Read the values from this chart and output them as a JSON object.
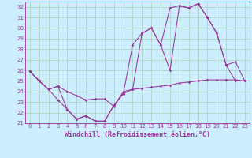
{
  "xlabel": "Windchill (Refroidissement éolien,°C)",
  "background_color": "#cceeff",
  "grid_color": "#aaccbb",
  "line_color": "#993399",
  "xlim": [
    -0.5,
    23.5
  ],
  "ylim": [
    21,
    32.5
  ],
  "xticks": [
    0,
    1,
    2,
    3,
    4,
    5,
    6,
    7,
    8,
    9,
    10,
    11,
    12,
    13,
    14,
    15,
    16,
    17,
    18,
    19,
    20,
    21,
    22,
    23
  ],
  "yticks": [
    21,
    22,
    23,
    24,
    25,
    26,
    27,
    28,
    29,
    30,
    31,
    32
  ],
  "series1_x": [
    0,
    1,
    2,
    3,
    4,
    5,
    6,
    7,
    8,
    9,
    10,
    11,
    12,
    13,
    14,
    15,
    16,
    17,
    18,
    19,
    20,
    21,
    22,
    23
  ],
  "series1_y": [
    25.9,
    25.0,
    24.2,
    24.5,
    22.3,
    21.4,
    21.7,
    21.2,
    21.2,
    22.7,
    23.8,
    24.2,
    29.5,
    30.0,
    28.4,
    26.0,
    32.1,
    31.9,
    32.3,
    31.0,
    29.5,
    26.5,
    25.0,
    25.0
  ],
  "series2_x": [
    0,
    1,
    2,
    3,
    4,
    5,
    6,
    7,
    8,
    9,
    10,
    11,
    12,
    13,
    14,
    15,
    16,
    17,
    18,
    19,
    20,
    21,
    22,
    23
  ],
  "series2_y": [
    25.9,
    25.0,
    24.2,
    24.5,
    24.0,
    23.6,
    23.2,
    23.3,
    23.3,
    22.6,
    24.0,
    24.2,
    24.3,
    24.4,
    24.5,
    24.6,
    24.8,
    24.9,
    25.0,
    25.1,
    25.1,
    25.1,
    25.1,
    25.0
  ],
  "series3_x": [
    0,
    1,
    2,
    3,
    4,
    5,
    6,
    7,
    8,
    9,
    10,
    11,
    12,
    13,
    14,
    15,
    16,
    17,
    18,
    19,
    20,
    21,
    22,
    23
  ],
  "series3_y": [
    25.9,
    25.0,
    24.2,
    23.2,
    22.3,
    21.4,
    21.7,
    21.2,
    21.2,
    22.7,
    23.8,
    28.4,
    29.5,
    30.0,
    28.4,
    31.9,
    32.1,
    31.9,
    32.3,
    31.0,
    29.5,
    26.5,
    26.8,
    25.0
  ],
  "tick_fontsize": 5.0,
  "xlabel_fontsize": 6.0
}
